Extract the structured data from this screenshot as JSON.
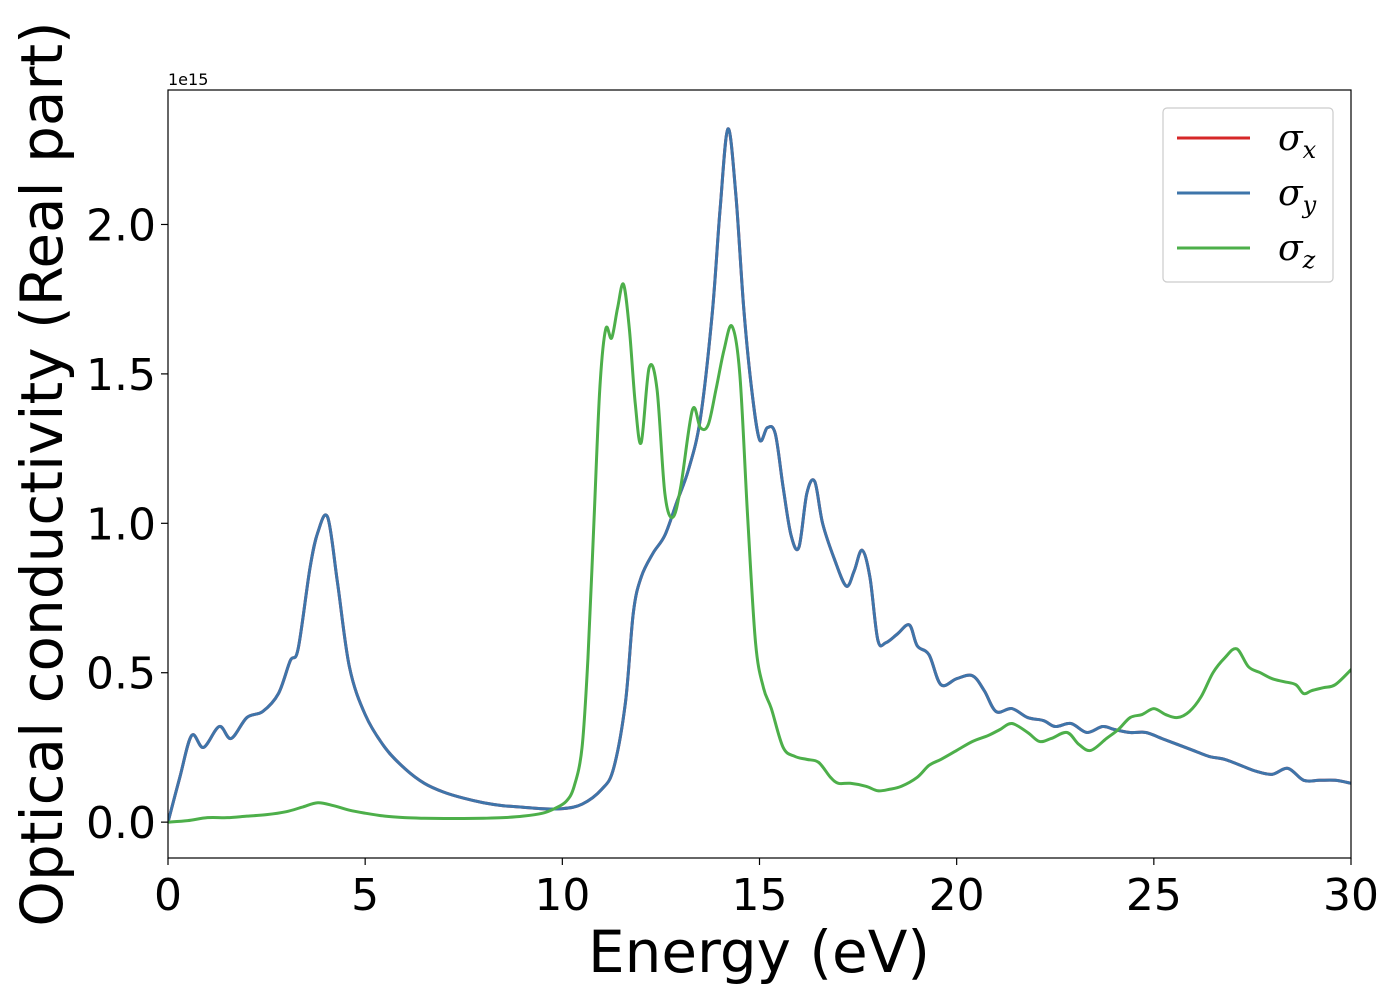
{
  "chart_data": {
    "type": "line",
    "title": "",
    "xlabel": "Energy (eV)",
    "ylabel": "Optical conductivity (Real part)",
    "y_exponent_label": "1e15",
    "xlim": [
      0,
      30
    ],
    "ylim": [
      -0.12,
      2.45
    ],
    "y_scale_factor": 1000000000000000.0,
    "xticks": [
      0,
      5,
      10,
      15,
      20,
      25,
      30
    ],
    "yticks": [
      0.0,
      0.5,
      1.0,
      1.5,
      2.0
    ],
    "xtick_labels": [
      "0",
      "5",
      "10",
      "15",
      "20",
      "25",
      "30"
    ],
    "ytick_labels": [
      "0.0",
      "0.5",
      "1.0",
      "1.5",
      "2.0"
    ],
    "grid": false,
    "legend_position": "top-right",
    "series": [
      {
        "name": "σx",
        "symbol": "σ",
        "subscript": "x",
        "color": "#d62728",
        "x": [
          0,
          0.3,
          0.6,
          0.9,
          1.3,
          1.6,
          2.0,
          2.4,
          2.8,
          3.1,
          3.3,
          3.6,
          3.8,
          4.05,
          4.3,
          4.6,
          5.0,
          5.5,
          6.0,
          6.5,
          7.0,
          7.5,
          8.0,
          8.5,
          9.0,
          9.5,
          10.0,
          10.5,
          11.0,
          11.3,
          11.6,
          11.8,
          12.0,
          12.3,
          12.6,
          12.9,
          13.2,
          13.5,
          13.8,
          14.0,
          14.2,
          14.4,
          14.6,
          14.8,
          15.0,
          15.2,
          15.4,
          15.6,
          15.8,
          16.0,
          16.2,
          16.4,
          16.6,
          16.9,
          17.2,
          17.4,
          17.6,
          17.8,
          18.0,
          18.2,
          18.5,
          18.8,
          19.0,
          19.3,
          19.6,
          20.0,
          20.4,
          20.7,
          21.0,
          21.4,
          21.8,
          22.2,
          22.5,
          22.9,
          23.3,
          23.7,
          24.0,
          24.4,
          24.8,
          25.2,
          25.6,
          26.0,
          26.4,
          26.8,
          27.2,
          27.6,
          28.0,
          28.4,
          28.8,
          29.2,
          29.6,
          30.0
        ],
        "values": [
          0.0,
          0.15,
          0.29,
          0.25,
          0.32,
          0.28,
          0.35,
          0.37,
          0.43,
          0.54,
          0.58,
          0.85,
          0.97,
          1.02,
          0.8,
          0.52,
          0.36,
          0.25,
          0.18,
          0.13,
          0.1,
          0.08,
          0.065,
          0.055,
          0.05,
          0.045,
          0.045,
          0.06,
          0.11,
          0.18,
          0.4,
          0.7,
          0.82,
          0.9,
          0.96,
          1.07,
          1.18,
          1.35,
          1.7,
          2.05,
          2.32,
          2.1,
          1.72,
          1.45,
          1.28,
          1.32,
          1.3,
          1.12,
          0.96,
          0.92,
          1.1,
          1.14,
          1.0,
          0.88,
          0.79,
          0.84,
          0.91,
          0.82,
          0.61,
          0.6,
          0.63,
          0.66,
          0.59,
          0.56,
          0.46,
          0.48,
          0.49,
          0.44,
          0.37,
          0.38,
          0.35,
          0.34,
          0.32,
          0.33,
          0.3,
          0.32,
          0.31,
          0.3,
          0.3,
          0.28,
          0.26,
          0.24,
          0.22,
          0.21,
          0.19,
          0.17,
          0.16,
          0.18,
          0.14,
          0.14,
          0.14,
          0.13
        ]
      },
      {
        "name": "σy",
        "symbol": "σ",
        "subscript": "y",
        "color": "#3e75aa",
        "x": [
          0,
          0.3,
          0.6,
          0.9,
          1.3,
          1.6,
          2.0,
          2.4,
          2.8,
          3.1,
          3.3,
          3.6,
          3.8,
          4.05,
          4.3,
          4.6,
          5.0,
          5.5,
          6.0,
          6.5,
          7.0,
          7.5,
          8.0,
          8.5,
          9.0,
          9.5,
          10.0,
          10.5,
          11.0,
          11.3,
          11.6,
          11.8,
          12.0,
          12.3,
          12.6,
          12.9,
          13.2,
          13.5,
          13.8,
          14.0,
          14.2,
          14.4,
          14.6,
          14.8,
          15.0,
          15.2,
          15.4,
          15.6,
          15.8,
          16.0,
          16.2,
          16.4,
          16.6,
          16.9,
          17.2,
          17.4,
          17.6,
          17.8,
          18.0,
          18.2,
          18.5,
          18.8,
          19.0,
          19.3,
          19.6,
          20.0,
          20.4,
          20.7,
          21.0,
          21.4,
          21.8,
          22.2,
          22.5,
          22.9,
          23.3,
          23.7,
          24.0,
          24.4,
          24.8,
          25.2,
          25.6,
          26.0,
          26.4,
          26.8,
          27.2,
          27.6,
          28.0,
          28.4,
          28.8,
          29.2,
          29.6,
          30.0
        ],
        "values": [
          0.0,
          0.15,
          0.29,
          0.25,
          0.32,
          0.28,
          0.35,
          0.37,
          0.43,
          0.54,
          0.58,
          0.85,
          0.97,
          1.02,
          0.8,
          0.52,
          0.36,
          0.25,
          0.18,
          0.13,
          0.1,
          0.08,
          0.065,
          0.055,
          0.05,
          0.045,
          0.045,
          0.06,
          0.11,
          0.18,
          0.4,
          0.7,
          0.82,
          0.9,
          0.96,
          1.07,
          1.18,
          1.35,
          1.7,
          2.05,
          2.32,
          2.1,
          1.72,
          1.45,
          1.28,
          1.32,
          1.3,
          1.12,
          0.96,
          0.92,
          1.1,
          1.14,
          1.0,
          0.88,
          0.79,
          0.84,
          0.91,
          0.82,
          0.61,
          0.6,
          0.63,
          0.66,
          0.59,
          0.56,
          0.46,
          0.48,
          0.49,
          0.44,
          0.37,
          0.38,
          0.35,
          0.34,
          0.32,
          0.33,
          0.3,
          0.32,
          0.31,
          0.3,
          0.3,
          0.28,
          0.26,
          0.24,
          0.22,
          0.21,
          0.19,
          0.17,
          0.16,
          0.18,
          0.14,
          0.14,
          0.14,
          0.13
        ]
      },
      {
        "name": "σz",
        "symbol": "σ",
        "subscript": "z",
        "color": "#4daf4a",
        "x": [
          0,
          0.5,
          1.0,
          1.5,
          2.0,
          2.5,
          3.0,
          3.4,
          3.8,
          4.2,
          4.6,
          5.0,
          5.5,
          6.0,
          6.5,
          7.0,
          7.5,
          8.0,
          8.5,
          9.0,
          9.5,
          9.8,
          10.1,
          10.3,
          10.5,
          10.65,
          10.8,
          10.95,
          11.1,
          11.25,
          11.4,
          11.55,
          11.7,
          11.85,
          12.0,
          12.2,
          12.4,
          12.6,
          12.8,
          13.0,
          13.3,
          13.5,
          13.7,
          13.9,
          14.1,
          14.3,
          14.5,
          14.7,
          14.9,
          15.1,
          15.3,
          15.6,
          15.9,
          16.2,
          16.5,
          16.8,
          17.0,
          17.3,
          17.7,
          18.0,
          18.3,
          18.6,
          19.0,
          19.3,
          19.6,
          20.0,
          20.4,
          20.8,
          21.1,
          21.4,
          21.8,
          22.1,
          22.4,
          22.8,
          23.1,
          23.4,
          23.8,
          24.1,
          24.4,
          24.7,
          25.0,
          25.3,
          25.6,
          25.9,
          26.2,
          26.5,
          26.8,
          27.1,
          27.4,
          27.7,
          28.0,
          28.3,
          28.6,
          28.8,
          29.0,
          29.3,
          29.6,
          30.0
        ],
        "values": [
          0.0,
          0.005,
          0.015,
          0.015,
          0.02,
          0.025,
          0.035,
          0.05,
          0.065,
          0.055,
          0.04,
          0.03,
          0.02,
          0.015,
          0.013,
          0.012,
          0.012,
          0.013,
          0.015,
          0.02,
          0.03,
          0.045,
          0.07,
          0.12,
          0.25,
          0.55,
          1.0,
          1.45,
          1.65,
          1.62,
          1.72,
          1.8,
          1.65,
          1.4,
          1.27,
          1.52,
          1.45,
          1.1,
          1.02,
          1.12,
          1.38,
          1.32,
          1.33,
          1.45,
          1.58,
          1.66,
          1.5,
          1.02,
          0.6,
          0.45,
          0.38,
          0.25,
          0.22,
          0.21,
          0.2,
          0.15,
          0.13,
          0.13,
          0.12,
          0.105,
          0.11,
          0.12,
          0.15,
          0.19,
          0.21,
          0.24,
          0.27,
          0.29,
          0.31,
          0.33,
          0.3,
          0.27,
          0.28,
          0.3,
          0.26,
          0.24,
          0.28,
          0.31,
          0.35,
          0.36,
          0.38,
          0.36,
          0.35,
          0.37,
          0.42,
          0.5,
          0.55,
          0.58,
          0.52,
          0.5,
          0.48,
          0.47,
          0.46,
          0.43,
          0.44,
          0.45,
          0.46,
          0.51
        ]
      }
    ]
  }
}
